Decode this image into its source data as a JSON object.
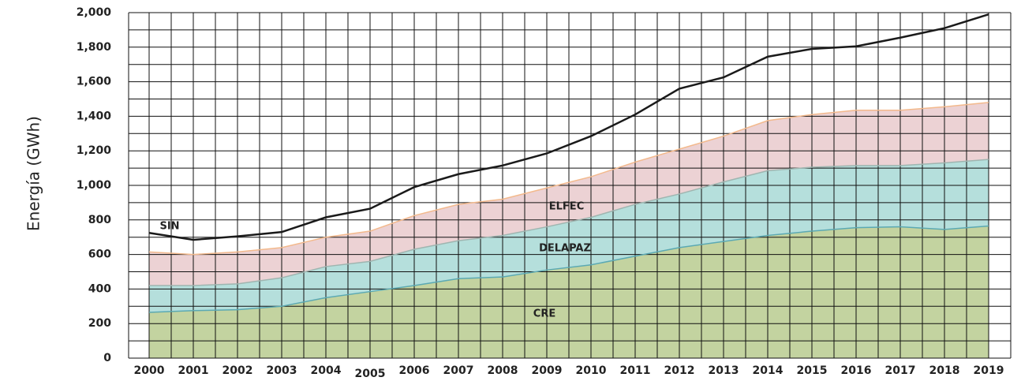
{
  "chart_data": {
    "type": "stacked_area_line",
    "y_label": "Energía (GWh)",
    "categories": [
      "2000",
      "2001",
      "2002",
      "2003",
      "2004",
      "2005",
      "2006",
      "2007",
      "2008",
      "2009",
      "2010",
      "2011",
      "2012",
      "2013",
      "2014",
      "2015",
      "2016",
      "2017",
      "2018",
      "2019"
    ],
    "series": [
      {
        "name": "CRE",
        "color": "#c3d3a0",
        "line_color": "#5ba9b3",
        "values": [
          265,
          275,
          280,
          300,
          350,
          385,
          420,
          460,
          470,
          510,
          540,
          590,
          640,
          675,
          710,
          735,
          755,
          760,
          745,
          765
        ]
      },
      {
        "name": "DELAPAZ",
        "color": "#b5dfdc",
        "line_color": "#9fb5b0",
        "values": [
          155,
          145,
          150,
          165,
          180,
          175,
          210,
          220,
          240,
          250,
          275,
          300,
          310,
          345,
          375,
          370,
          360,
          355,
          385,
          385
        ]
      },
      {
        "name": "ELFEC",
        "color": "#ecd2d4",
        "line_color": "#f3b98c",
        "values": [
          195,
          180,
          185,
          175,
          170,
          175,
          195,
          210,
          210,
          225,
          235,
          245,
          260,
          265,
          290,
          305,
          320,
          320,
          325,
          330
        ]
      },
      {
        "name": "SIN",
        "color": "#1a1a1a",
        "kind": "line",
        "values": [
          725,
          685,
          705,
          730,
          815,
          865,
          990,
          1065,
          1115,
          1185,
          1285,
          1410,
          1560,
          1625,
          1745,
          1790,
          1805,
          1855,
          1910,
          1990
        ]
      }
    ],
    "ylim": [
      0,
      2000
    ],
    "yticks": [
      0,
      200,
      400,
      600,
      800,
      {
        "value": 1000,
        "label": "1,000"
      },
      {
        "value": 1200,
        "label": "1,200"
      },
      {
        "value": 1400,
        "label": "1,400"
      },
      {
        "value": 1600,
        "label": "1,600"
      },
      {
        "value": 1800,
        "label": "1,800"
      },
      {
        "value": 2000,
        "label": "2,000"
      }
    ],
    "yminor": [
      100,
      300,
      500,
      700,
      900,
      1100,
      1300,
      1500,
      1700,
      1900
    ],
    "grid": true
  }
}
